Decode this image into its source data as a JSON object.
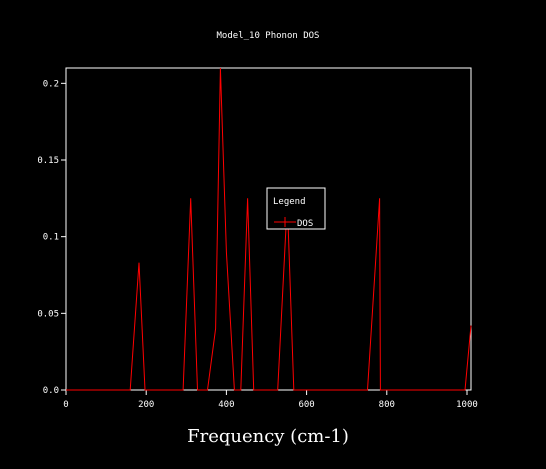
{
  "chart_data": {
    "type": "line",
    "title": "Model_10 Phonon DOS",
    "xlabel": "Frequency (cm-1)",
    "ylabel": "",
    "xlim": [
      0,
      1010
    ],
    "ylim": [
      0,
      0.21
    ],
    "x_ticks": [
      "0",
      "200",
      "400",
      "600",
      "800",
      "1000"
    ],
    "y_ticks": [
      "0.0",
      "0.05",
      "0.1",
      "0.15",
      "0.2"
    ],
    "x_tick_values": [
      0,
      200,
      400,
      600,
      800,
      1000
    ],
    "y_tick_values": [
      0,
      0.05,
      0.1,
      0.15,
      0.2
    ],
    "grid": false,
    "legend": {
      "title": "Legend",
      "placement": "center",
      "entries": [
        "DOS"
      ]
    },
    "series": [
      {
        "name": "DOS",
        "color": "#ff0000",
        "x": [
          0,
          160,
          182,
          197,
          292,
          311,
          328,
          353,
          373,
          385,
          400,
          420,
          436,
          453,
          468,
          528,
          552,
          568,
          752,
          782,
          784,
          995,
          1010
        ],
        "y": [
          0,
          0,
          0.083,
          0,
          0,
          0.125,
          0,
          0,
          0.04,
          0.21,
          0.09,
          0,
          0,
          0.125,
          0,
          0,
          0.123,
          0,
          0,
          0.125,
          0,
          0,
          0.042
        ]
      }
    ]
  },
  "colors": {
    "background": "#000000",
    "axes": "#ffffff",
    "series": "#ff0000"
  }
}
